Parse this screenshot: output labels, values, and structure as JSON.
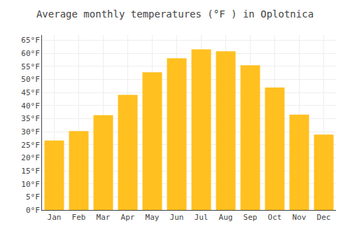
{
  "chart_data": {
    "type": "bar",
    "title": "Average monthly temperatures (°F ) in Oplotnica",
    "categories": [
      "Jan",
      "Feb",
      "Mar",
      "Apr",
      "May",
      "Jun",
      "Jul",
      "Aug",
      "Sep",
      "Oct",
      "Nov",
      "Dec"
    ],
    "values": [
      26.6,
      30.2,
      36.3,
      44.1,
      52.7,
      58.1,
      61.5,
      60.8,
      55.4,
      46.9,
      36.5,
      28.9
    ],
    "color": "#FFC020",
    "ylim": [
      0,
      67
    ],
    "yticks": [
      {
        "value": 0,
        "label": "0°F"
      },
      {
        "value": 5,
        "label": "5°F"
      },
      {
        "value": 10,
        "label": "10°F"
      },
      {
        "value": 15,
        "label": "15°F"
      },
      {
        "value": 20,
        "label": "20°F"
      },
      {
        "value": 25,
        "label": "25°F"
      },
      {
        "value": 30,
        "label": "30°F"
      },
      {
        "value": 35,
        "label": "35°F"
      },
      {
        "value": 40,
        "label": "40°F"
      },
      {
        "value": 45,
        "label": "45°F"
      },
      {
        "value": 50,
        "label": "50°F"
      },
      {
        "value": 55,
        "label": "55°F"
      },
      {
        "value": 60,
        "label": "60°F"
      },
      {
        "value": 65,
        "label": "65°F"
      }
    ],
    "grid": true
  }
}
